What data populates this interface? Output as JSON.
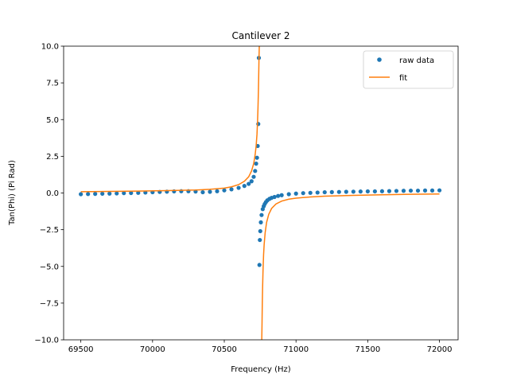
{
  "chart_data": {
    "type": "scatter",
    "title": "Cantilever 2",
    "xlabel": "Frequency (Hz)",
    "ylabel": "Tan(Phi) (Pi Rad)",
    "xlim": [
      69380,
      72130
    ],
    "ylim": [
      -10.0,
      10.0
    ],
    "xticks": [
      69500,
      70000,
      70500,
      71000,
      71500,
      72000
    ],
    "xtick_labels": [
      "69500",
      "70000",
      "70500",
      "71000",
      "71500",
      "72000"
    ],
    "yticks": [
      -10.0,
      -7.5,
      -5.0,
      -2.5,
      0.0,
      2.5,
      5.0,
      7.5,
      10.0
    ],
    "ytick_labels": [
      "−10.0",
      "−7.5",
      "−5.0",
      "−2.5",
      "0.0",
      "2.5",
      "5.0",
      "7.5",
      "10.0"
    ],
    "grid": false,
    "legend_position": "top-right",
    "series": [
      {
        "name": "raw data",
        "style": "points",
        "color": "#1f77b4",
        "x": [
          69500,
          69550,
          69600,
          69650,
          69700,
          69750,
          69800,
          69850,
          69900,
          69950,
          70000,
          70050,
          70100,
          70150,
          70200,
          70250,
          70300,
          70350,
          70400,
          70450,
          70500,
          70550,
          70600,
          70640,
          70670,
          70690,
          70705,
          70715,
          70722,
          70728,
          70733,
          70737,
          70741,
          70745,
          70748,
          70751,
          70755,
          70760,
          70768,
          70775,
          70782,
          70790,
          70800,
          70815,
          70830,
          70850,
          70875,
          70900,
          70950,
          71000,
          71050,
          71100,
          71150,
          71200,
          71250,
          71300,
          71350,
          71400,
          71450,
          71500,
          71550,
          71600,
          71650,
          71700,
          71750,
          71800,
          71850,
          71900,
          71950,
          72000
        ],
        "y": [
          -0.08,
          -0.07,
          -0.06,
          -0.05,
          -0.04,
          -0.03,
          -0.01,
          0.0,
          0.01,
          0.03,
          0.05,
          0.07,
          0.09,
          0.11,
          0.12,
          0.12,
          0.1,
          0.05,
          0.08,
          0.12,
          0.18,
          0.25,
          0.35,
          0.48,
          0.62,
          0.8,
          1.1,
          1.5,
          2.0,
          2.4,
          3.2,
          4.7,
          9.2,
          -4.9,
          -3.2,
          -2.6,
          -2.0,
          -1.5,
          -1.1,
          -0.9,
          -0.75,
          -0.62,
          -0.5,
          -0.4,
          -0.33,
          -0.27,
          -0.2,
          -0.15,
          -0.08,
          -0.04,
          -0.01,
          0.01,
          0.03,
          0.05,
          0.06,
          0.07,
          0.08,
          0.09,
          0.1,
          0.11,
          0.11,
          0.12,
          0.13,
          0.14,
          0.15,
          0.16,
          0.16,
          0.17,
          0.17,
          0.18
        ]
      },
      {
        "name": "fit",
        "style": "line",
        "color": "#ff7f0e",
        "x": [
          69500,
          69700,
          69900,
          70100,
          70300,
          70400,
          70500,
          70550,
          70600,
          70640,
          70670,
          70690,
          70705,
          70715,
          70722,
          70728,
          70732,
          70735,
          70738,
          70740,
          70742,
          70744,
          70745.6,
          70761.3,
          70763,
          70765,
          70767,
          70770,
          70774,
          70778,
          70785,
          70795,
          70810,
          70830,
          70860,
          70900,
          70950,
          71000,
          71100,
          71200,
          71400,
          71600,
          71800,
          72000
        ],
        "y": [
          0.09,
          0.11,
          0.13,
          0.16,
          0.2,
          0.25,
          0.33,
          0.42,
          0.57,
          0.8,
          1.1,
          1.5,
          2.0,
          2.6,
          3.2,
          4.0,
          4.9,
          5.8,
          7.0,
          8.0,
          9.2,
          10.0,
          10.0,
          -10.0,
          -9.0,
          -7.5,
          -6.5,
          -5.3,
          -4.2,
          -3.5,
          -2.7,
          -2.0,
          -1.45,
          -1.05,
          -0.75,
          -0.55,
          -0.42,
          -0.35,
          -0.27,
          -0.22,
          -0.16,
          -0.12,
          -0.09,
          -0.07
        ]
      }
    ]
  }
}
